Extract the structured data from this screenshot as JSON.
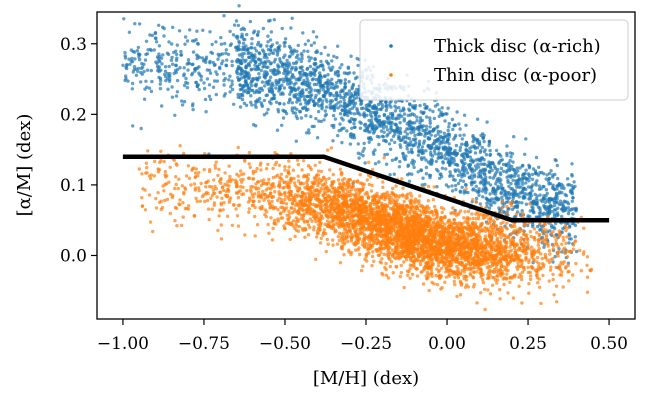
{
  "chart_data": {
    "type": "scatter",
    "title": "",
    "xlabel": "[M/H] (dex)",
    "ylabel": "[α/M] (dex)",
    "xlim": [
      -1.08,
      0.58
    ],
    "ylim": [
      -0.09,
      0.345
    ],
    "xticks": [
      -1.0,
      -0.75,
      -0.5,
      -0.25,
      0.0,
      0.25,
      0.5
    ],
    "xtick_labels": [
      "−1.00",
      "−0.75",
      "−0.50",
      "−0.25",
      "0.00",
      "0.25",
      "0.50"
    ],
    "yticks": [
      0.0,
      0.1,
      0.2,
      0.3
    ],
    "ytick_labels": [
      "0.0",
      "0.1",
      "0.2",
      "0.3"
    ],
    "grid": false,
    "legend_position": "top-right",
    "series": [
      {
        "name": "Thick disc (α-rich)",
        "color": "#1f77b4",
        "marker": "dot",
        "trend_points": [
          [
            -0.9,
            0.27
          ],
          [
            -0.75,
            0.27
          ],
          [
            -0.6,
            0.265
          ],
          [
            -0.4,
            0.24
          ],
          [
            -0.2,
            0.2
          ],
          [
            0.0,
            0.15
          ],
          [
            0.2,
            0.09
          ],
          [
            0.35,
            0.06
          ]
        ],
        "x_range": [
          -1.0,
          0.43
        ],
        "scatter_spread": 0.03
      },
      {
        "name": "Thin disc (α-poor)",
        "color": "#ff7f0e",
        "marker": "dot",
        "trend_points": [
          [
            -0.9,
            0.1
          ],
          [
            -0.6,
            0.09
          ],
          [
            -0.4,
            0.075
          ],
          [
            -0.2,
            0.045
          ],
          [
            0.0,
            0.015
          ],
          [
            0.2,
            0.005
          ],
          [
            0.45,
            0.0
          ]
        ],
        "x_range": [
          -0.95,
          0.45
        ],
        "scatter_spread": 0.025
      }
    ],
    "separator_line": {
      "color": "#000000",
      "points": [
        [
          -1.0,
          0.14
        ],
        [
          -0.38,
          0.14
        ],
        [
          0.2,
          0.05
        ],
        [
          0.5,
          0.05
        ]
      ]
    }
  }
}
